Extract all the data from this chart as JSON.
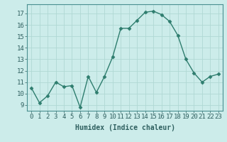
{
  "x": [
    0,
    1,
    2,
    3,
    4,
    5,
    6,
    7,
    8,
    9,
    10,
    11,
    12,
    13,
    14,
    15,
    16,
    17,
    18,
    19,
    20,
    21,
    22,
    23
  ],
  "y": [
    10.5,
    9.2,
    9.8,
    11.0,
    10.6,
    10.7,
    8.8,
    11.5,
    10.1,
    11.5,
    13.2,
    15.7,
    15.7,
    16.4,
    17.1,
    17.2,
    16.9,
    16.3,
    15.1,
    13.0,
    11.8,
    11.0,
    11.5,
    11.7
  ],
  "line_color": "#2e7d6e",
  "marker": "D",
  "marker_size": 2.5,
  "bg_color": "#ccecea",
  "grid_color": "#b0d8d4",
  "xlabel": "Humidex (Indice chaleur)",
  "ylabel_ticks": [
    9,
    10,
    11,
    12,
    13,
    14,
    15,
    16,
    17
  ],
  "ylim": [
    8.5,
    17.8
  ],
  "xlim": [
    -0.5,
    23.5
  ],
  "xtick_labels": [
    "0",
    "1",
    "2",
    "3",
    "4",
    "5",
    "6",
    "7",
    "8",
    "9",
    "10",
    "11",
    "12",
    "13",
    "14",
    "15",
    "16",
    "17",
    "18",
    "19",
    "20",
    "21",
    "22",
    "23"
  ],
  "label_fontsize": 7,
  "tick_fontsize": 6.5,
  "tick_color": "#2e5f5f",
  "line_width": 1.0,
  "spine_color": "#4a9090"
}
